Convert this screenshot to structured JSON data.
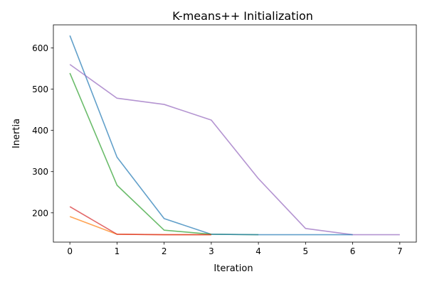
{
  "chart_data": {
    "type": "line",
    "title": "K-means++ Initialization",
    "xlabel": "Iteration",
    "ylabel": "Inertia",
    "xlim": [
      -0.35,
      7.35
    ],
    "ylim": [
      129,
      656
    ],
    "x_ticks": [
      0,
      1,
      2,
      3,
      4,
      5,
      6,
      7
    ],
    "y_ticks": [
      200,
      300,
      400,
      500,
      600
    ],
    "grid": false,
    "series": [
      {
        "color": "#1f77b4",
        "x": [
          0,
          1,
          2,
          3
        ],
        "y": [
          630,
          335,
          186,
          148
        ]
      },
      {
        "color": "#ff7f0e",
        "x": [
          0,
          1,
          2,
          3
        ],
        "y": [
          191,
          148,
          147,
          147
        ]
      },
      {
        "color": "#2ca02c",
        "x": [
          0,
          1,
          2,
          3,
          4
        ],
        "y": [
          539,
          267,
          158,
          148,
          147
        ]
      },
      {
        "color": "#d62728",
        "x": [
          0,
          1,
          2,
          3
        ],
        "y": [
          215,
          148,
          147,
          147
        ]
      },
      {
        "color": "#9467bd",
        "x": [
          0,
          1,
          2,
          3,
          4,
          5,
          6,
          7
        ],
        "y": [
          560,
          478,
          463,
          425,
          283,
          162,
          147,
          147
        ]
      },
      {
        "color": "#1f77b4",
        "x": [
          3,
          4,
          5,
          6
        ],
        "y": [
          148,
          147,
          147,
          147
        ]
      }
    ]
  }
}
